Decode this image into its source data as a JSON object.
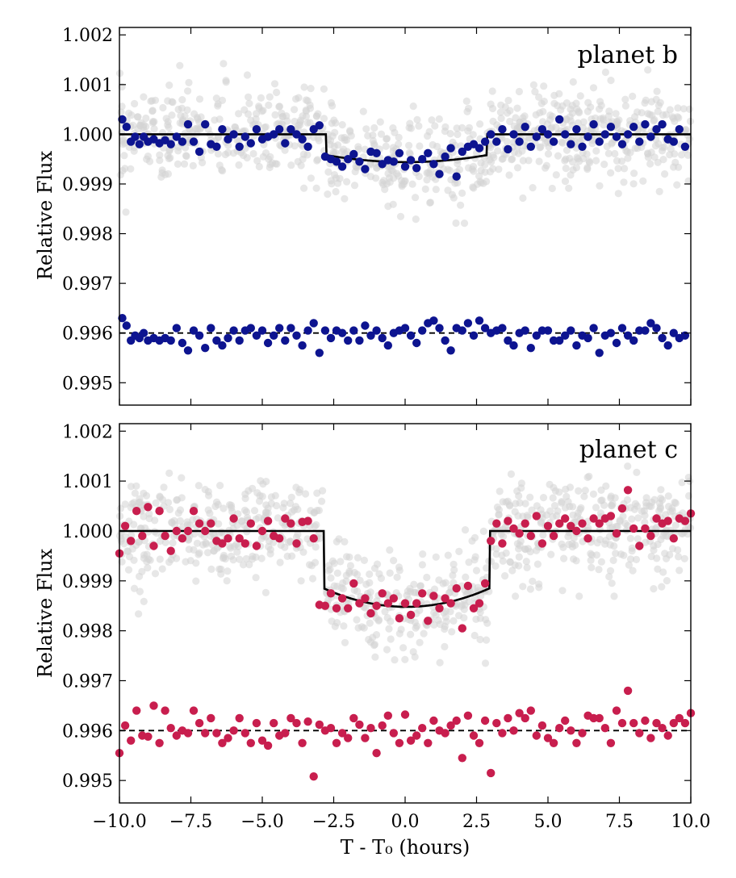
{
  "chart_data": [
    {
      "type": "scatter",
      "panel_label": "planet b",
      "ylabel": "Relative Flux",
      "xlim": [
        -10,
        10
      ],
      "ylim": [
        0.99455,
        1.00215
      ],
      "yticks": [
        "0.995",
        "0.996",
        "0.997",
        "0.998",
        "0.999",
        "1.000",
        "1.001",
        "1.002"
      ],
      "colors": {
        "binned": "#0d1490",
        "raw": "#d3d3d3",
        "model": "#000000"
      },
      "transit": {
        "t1": -2.75,
        "t2": 2.85,
        "depth": 0.00042,
        "depth_center": 0.00056,
        "baseline": 1.0,
        "residual_offset": 0.996
      },
      "raw_scatter": 0.00045,
      "binned_x": [
        -9.9,
        -9.75,
        -9.6,
        -9.45,
        -9.3,
        -9.15,
        -9.0,
        -8.8,
        -8.6,
        -8.4,
        -8.2,
        -8.0,
        -7.8,
        -7.6,
        -7.4,
        -7.2,
        -7.0,
        -6.8,
        -6.6,
        -6.4,
        -6.2,
        -6.0,
        -5.8,
        -5.6,
        -5.4,
        -5.2,
        -5.0,
        -4.8,
        -4.6,
        -4.4,
        -4.2,
        -4.0,
        -3.8,
        -3.6,
        -3.4,
        -3.2,
        -3.0,
        -2.8,
        -2.6,
        -2.4,
        -2.2,
        -2.0,
        -1.8,
        -1.6,
        -1.4,
        -1.2,
        -1.0,
        -0.8,
        -0.6,
        -0.4,
        -0.2,
        0.0,
        0.2,
        0.4,
        0.6,
        0.8,
        1.0,
        1.2,
        1.4,
        1.6,
        1.8,
        2.0,
        2.2,
        2.4,
        2.6,
        2.8,
        3.0,
        3.2,
        3.4,
        3.6,
        3.8,
        4.0,
        4.2,
        4.4,
        4.6,
        4.8,
        5.0,
        5.2,
        5.4,
        5.6,
        5.8,
        6.0,
        6.2,
        6.4,
        6.6,
        6.8,
        7.0,
        7.2,
        7.4,
        7.6,
        7.8,
        8.0,
        8.2,
        8.4,
        8.6,
        8.8,
        9.0,
        9.2,
        9.4,
        9.6,
        9.8
      ],
      "binned_y": [
        1.0003,
        1.00015,
        0.99985,
        0.99995,
        0.9998,
        0.99995,
        0.99985,
        0.9999,
        0.99982,
        0.99988,
        0.9998,
        0.99995,
        0.99985,
        1.0002,
        0.99985,
        0.99965,
        1.0002,
        0.9998,
        0.99975,
        1.0001,
        0.9999,
        1.0,
        0.99975,
        0.99995,
        0.99982,
        1.0001,
        0.9999,
        0.99995,
        1.0,
        1.0001,
        0.99982,
        1.0001,
        1.0,
        0.9999,
        0.99975,
        1.0001,
        1.00018,
        0.99955,
        0.9995,
        0.99945,
        0.99935,
        0.9995,
        0.9996,
        0.99945,
        0.9993,
        0.99965,
        0.99962,
        0.9994,
        0.99948,
        0.99945,
        0.99962,
        0.99935,
        0.99948,
        0.99932,
        0.9995,
        0.99962,
        0.9994,
        0.9992,
        0.99955,
        0.99972,
        0.99915,
        0.99965,
        0.99975,
        0.9998,
        0.99972,
        0.99985,
        1.0,
        0.99985,
        1.0001,
        0.9997,
        1.0,
        0.99985,
        1.00015,
        0.99975,
        0.99995,
        1.0001,
        1.0,
        0.99985,
        1.0003,
        1.0,
        0.9998,
        1.0001,
        0.99975,
        0.99995,
        1.0002,
        0.99985,
        1.0,
        1.00015,
        0.99995,
        0.9998,
        1.0,
        1.00015,
        0.99985,
        1.0002,
        0.99995,
        1.0001,
        1.0002,
        0.9999,
        0.99985,
        1.0001,
        0.99975
      ],
      "residual_y": [
        0.9963,
        0.99615,
        0.99585,
        0.99595,
        0.9959,
        0.996,
        0.99585,
        0.9959,
        0.99585,
        0.9959,
        0.99585,
        0.9961,
        0.9958,
        0.99565,
        0.99605,
        0.99595,
        0.9957,
        0.9961,
        0.99585,
        0.99575,
        0.9959,
        0.99605,
        0.99585,
        0.99605,
        0.9961,
        0.99595,
        0.99605,
        0.9958,
        0.99595,
        0.9961,
        0.99585,
        0.9961,
        0.99595,
        0.99575,
        0.99605,
        0.9962,
        0.9956,
        0.99605,
        0.9959,
        0.99605,
        0.996,
        0.99585,
        0.99605,
        0.99585,
        0.99615,
        0.99595,
        0.99605,
        0.9959,
        0.99575,
        0.996,
        0.99605,
        0.9961,
        0.99595,
        0.9958,
        0.99605,
        0.9962,
        0.99625,
        0.9961,
        0.99585,
        0.99565,
        0.9961,
        0.99605,
        0.9962,
        0.99595,
        0.99625,
        0.9961,
        0.996,
        0.99605,
        0.9961,
        0.99585,
        0.99575,
        0.996,
        0.99605,
        0.9957,
        0.99595,
        0.99605,
        0.99605,
        0.99585,
        0.99585,
        0.99595,
        0.99605,
        0.99575,
        0.99595,
        0.9959,
        0.9961,
        0.9956,
        0.99595,
        0.996,
        0.9958,
        0.9961,
        0.99595,
        0.99585,
        0.99605,
        0.99605,
        0.9962,
        0.9961,
        0.9959,
        0.99575,
        0.996,
        0.9959,
        0.99595
      ]
    },
    {
      "type": "scatter",
      "panel_label": "planet c",
      "ylabel": "Relative Flux",
      "xlabel": "T - T₀ (hours)",
      "xlim": [
        -10,
        10
      ],
      "ylim": [
        0.99455,
        1.00215
      ],
      "xticks": [
        "−10.0",
        "−7.5",
        "−5.0",
        "−2.5",
        "0.0",
        "2.5",
        "5.0",
        "7.5",
        "10.0"
      ],
      "yticks": [
        "0.995",
        "0.996",
        "0.997",
        "0.998",
        "0.999",
        "1.000",
        "1.001",
        "1.002"
      ],
      "colors": {
        "binned": "#c81e4e",
        "raw": "#d3d3d3",
        "model": "#000000"
      },
      "transit": {
        "t1": -2.85,
        "t2": 2.95,
        "depth": 0.00115,
        "depth_center": 0.00152,
        "baseline": 1.0,
        "residual_offset": 0.996
      },
      "raw_scatter": 0.0005,
      "binned_x": [
        -10.0,
        -9.8,
        -9.6,
        -9.4,
        -9.2,
        -9.0,
        -8.8,
        -8.6,
        -8.4,
        -8.2,
        -8.0,
        -7.8,
        -7.6,
        -7.4,
        -7.2,
        -7.0,
        -6.8,
        -6.6,
        -6.4,
        -6.2,
        -6.0,
        -5.8,
        -5.6,
        -5.4,
        -5.2,
        -5.0,
        -4.8,
        -4.6,
        -4.4,
        -4.2,
        -4.0,
        -3.8,
        -3.6,
        -3.4,
        -3.2,
        -3.0,
        -2.8,
        -2.6,
        -2.4,
        -2.2,
        -2.0,
        -1.8,
        -1.6,
        -1.4,
        -1.2,
        -1.0,
        -0.8,
        -0.6,
        -0.4,
        -0.2,
        0.0,
        0.2,
        0.4,
        0.6,
        0.8,
        1.0,
        1.2,
        1.4,
        1.6,
        1.8,
        2.0,
        2.2,
        2.4,
        2.6,
        2.8,
        3.0,
        3.2,
        3.4,
        3.6,
        3.8,
        4.0,
        4.2,
        4.4,
        4.6,
        4.8,
        5.0,
        5.2,
        5.4,
        5.6,
        5.8,
        6.0,
        6.2,
        6.4,
        6.6,
        6.8,
        7.0,
        7.2,
        7.4,
        7.6,
        7.8,
        8.0,
        8.2,
        8.4,
        8.6,
        8.8,
        9.0,
        9.2,
        9.4,
        9.6,
        9.8,
        10.0
      ],
      "binned_y": [
        0.99955,
        1.0001,
        0.9998,
        1.0004,
        0.9999,
        1.00048,
        0.9997,
        1.0004,
        0.9999,
        0.9996,
        1.0,
        0.99985,
        1.0,
        1.0004,
        1.00015,
        1.0,
        1.00015,
        0.9998,
        0.99975,
        0.99985,
        1.00025,
        0.99985,
        0.99975,
        1.00015,
        0.9997,
        1.0,
        1.0002,
        0.9999,
        0.99985,
        1.00025,
        1.00015,
        0.99975,
        1.00018,
        1.0002,
        0.99985,
        0.99852,
        0.9985,
        0.99875,
        0.99845,
        0.99865,
        0.99845,
        0.99895,
        0.99855,
        0.99865,
        0.99835,
        0.9985,
        0.99875,
        0.99855,
        0.99865,
        0.99825,
        0.99855,
        0.99832,
        0.99855,
        0.99875,
        0.9982,
        0.9987,
        0.99845,
        0.99865,
        0.99855,
        0.99885,
        0.99805,
        0.9989,
        0.99845,
        0.99855,
        0.99895,
        0.9998,
        1.00015,
        0.99975,
        1.0002,
        1.00005,
        0.99995,
        1.00015,
        0.9999,
        1.0003,
        0.99975,
        1.0001,
        0.9999,
        1.00015,
        1.00025,
        1.0001,
        1.0,
        1.00015,
        0.99985,
        1.00025,
        1.00015,
        1.00025,
        1.0003,
        0.99995,
        1.00045,
        1.00082,
        1.00005,
        0.9997,
        1.00005,
        0.9999,
        1.00025,
        1.00015,
        1.0002,
        0.99985,
        1.00025,
        1.0002,
        1.00035
      ],
      "residual_y": [
        0.99555,
        0.9961,
        0.9958,
        0.9964,
        0.9959,
        0.99588,
        0.9965,
        0.99575,
        0.9964,
        0.99605,
        0.9959,
        0.996,
        0.99595,
        0.9964,
        0.99615,
        0.99595,
        0.99625,
        0.99595,
        0.99575,
        0.99585,
        0.996,
        0.99625,
        0.99595,
        0.99575,
        0.99615,
        0.9958,
        0.9957,
        0.99615,
        0.9959,
        0.99595,
        0.99625,
        0.99615,
        0.99575,
        0.99618,
        0.99508,
        0.99612,
        0.996,
        0.99605,
        0.99575,
        0.99595,
        0.99585,
        0.99625,
        0.99612,
        0.99585,
        0.99605,
        0.99555,
        0.9961,
        0.9963,
        0.99595,
        0.99575,
        0.99632,
        0.9958,
        0.9959,
        0.99605,
        0.99575,
        0.9962,
        0.996,
        0.99595,
        0.9961,
        0.9962,
        0.99545,
        0.9963,
        0.9959,
        0.99575,
        0.9962,
        0.99515,
        0.99615,
        0.99595,
        0.99625,
        0.996,
        0.99635,
        0.99625,
        0.9964,
        0.9959,
        0.9961,
        0.99585,
        0.99575,
        0.99605,
        0.9962,
        0.996,
        0.99575,
        0.99595,
        0.9963,
        0.99625,
        0.99625,
        0.99605,
        0.99575,
        0.9964,
        0.99615,
        0.9968,
        0.99615,
        0.99595,
        0.9962,
        0.99585,
        0.99615,
        0.99605,
        0.9959,
        0.99615,
        0.99625,
        0.99615,
        0.99635
      ]
    }
  ]
}
